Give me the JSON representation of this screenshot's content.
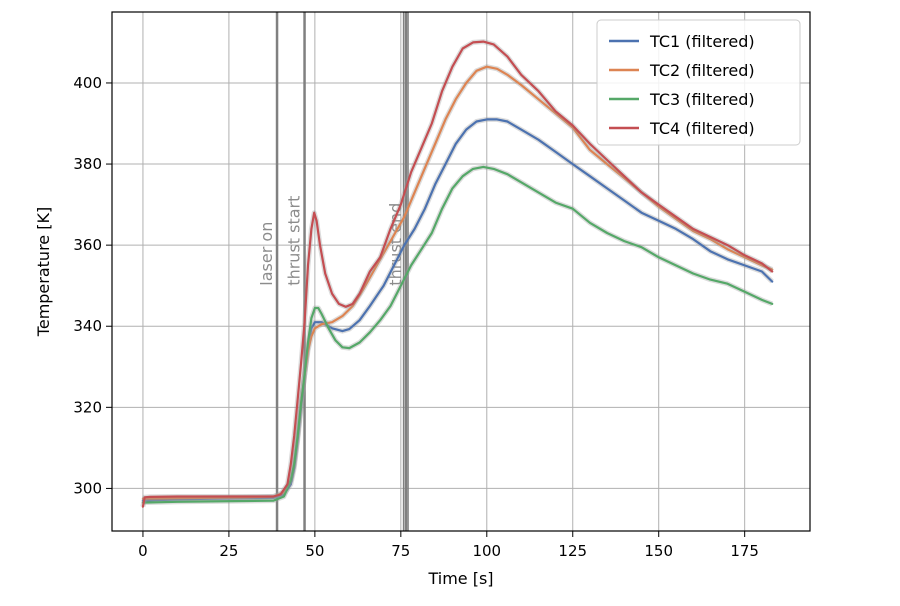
{
  "chart_data": {
    "type": "line",
    "title": "",
    "xlabel": "Time [s]",
    "ylabel": "Temperature [K]",
    "xlim": [
      -9,
      194
    ],
    "ylim": [
      289.5,
      417.5
    ],
    "xticks": [
      0,
      25,
      50,
      75,
      100,
      125,
      150,
      175
    ],
    "yticks": [
      300,
      320,
      340,
      360,
      380,
      400
    ],
    "grid": true,
    "legend_position": "top-right",
    "events": [
      {
        "label": "laser on",
        "x": 39
      },
      {
        "label": "thrust start",
        "x": 47
      },
      {
        "label": "thrust end",
        "x": 76.5
      }
    ],
    "extra_event_lines": [
      75.8,
      77.1
    ],
    "series": [
      {
        "name": "TC1 (filtered)",
        "color": "#4c72b0",
        "points": [
          [
            0,
            297.0
          ],
          [
            10,
            297.3
          ],
          [
            20,
            297.5
          ],
          [
            30,
            297.6
          ],
          [
            38,
            297.7
          ],
          [
            41,
            298.5
          ],
          [
            43,
            301
          ],
          [
            44,
            305
          ],
          [
            45,
            312
          ],
          [
            46,
            320
          ],
          [
            47,
            328
          ],
          [
            48,
            335
          ],
          [
            49,
            339.5
          ],
          [
            50,
            341
          ],
          [
            52,
            341
          ],
          [
            55,
            339.5
          ],
          [
            58,
            338.8
          ],
          [
            60,
            339.3
          ],
          [
            63,
            341.5
          ],
          [
            66,
            345
          ],
          [
            70,
            350
          ],
          [
            73,
            355
          ],
          [
            76,
            360
          ],
          [
            79,
            364
          ],
          [
            82,
            369
          ],
          [
            85,
            375
          ],
          [
            88,
            380
          ],
          [
            91,
            385
          ],
          [
            94,
            388.5
          ],
          [
            97,
            390.5
          ],
          [
            100,
            391
          ],
          [
            103,
            391
          ],
          [
            106,
            390.5
          ],
          [
            110,
            388.5
          ],
          [
            115,
            386
          ],
          [
            120,
            383
          ],
          [
            125,
            380
          ],
          [
            130,
            377
          ],
          [
            135,
            374
          ],
          [
            140,
            371
          ],
          [
            145,
            368
          ],
          [
            150,
            366
          ],
          [
            155,
            364
          ],
          [
            160,
            361.5
          ],
          [
            165,
            358.5
          ],
          [
            170,
            356.5
          ],
          [
            175,
            355
          ],
          [
            180,
            353.5
          ],
          [
            183,
            351
          ]
        ]
      },
      {
        "name": "TC2 (filtered)",
        "color": "#dd8452",
        "points": [
          [
            0,
            297.5
          ],
          [
            10,
            297.6
          ],
          [
            20,
            297.7
          ],
          [
            30,
            297.8
          ],
          [
            38,
            298.0
          ],
          [
            41,
            299
          ],
          [
            43,
            302
          ],
          [
            44,
            306
          ],
          [
            45,
            313
          ],
          [
            46,
            321
          ],
          [
            47,
            328
          ],
          [
            48,
            334
          ],
          [
            49,
            337.5
          ],
          [
            50,
            339.5
          ],
          [
            52,
            340.5
          ],
          [
            55,
            341
          ],
          [
            58,
            342.5
          ],
          [
            61,
            345
          ],
          [
            64,
            349
          ],
          [
            67,
            353.5
          ],
          [
            70,
            358
          ],
          [
            73,
            362.5
          ],
          [
            76,
            367
          ],
          [
            79,
            373
          ],
          [
            82,
            379
          ],
          [
            85,
            385
          ],
          [
            88,
            391
          ],
          [
            91,
            396
          ],
          [
            94,
            400
          ],
          [
            97,
            403
          ],
          [
            100,
            404
          ],
          [
            103,
            403.5
          ],
          [
            106,
            402
          ],
          [
            110,
            399.5
          ],
          [
            115,
            396
          ],
          [
            120,
            392.5
          ],
          [
            125,
            389
          ],
          [
            130,
            383.5
          ],
          [
            135,
            380
          ],
          [
            140,
            376.5
          ],
          [
            145,
            373
          ],
          [
            150,
            369.5
          ],
          [
            155,
            366.5
          ],
          [
            160,
            363.5
          ],
          [
            165,
            361.5
          ],
          [
            170,
            359
          ],
          [
            175,
            357
          ],
          [
            180,
            355
          ],
          [
            183,
            354
          ]
        ]
      },
      {
        "name": "TC3 (filtered)",
        "color": "#55a868",
        "points": [
          [
            0,
            296.5
          ],
          [
            10,
            296.7
          ],
          [
            20,
            296.8
          ],
          [
            30,
            296.9
          ],
          [
            38,
            297.0
          ],
          [
            41,
            298
          ],
          [
            43,
            302
          ],
          [
            44,
            306
          ],
          [
            45,
            313
          ],
          [
            46,
            321
          ],
          [
            47,
            328
          ],
          [
            48,
            336
          ],
          [
            49,
            342
          ],
          [
            50,
            344.5
          ],
          [
            51,
            344.5
          ],
          [
            52,
            343
          ],
          [
            54,
            339.5
          ],
          [
            56,
            336.5
          ],
          [
            58,
            334.8
          ],
          [
            60,
            334.6
          ],
          [
            63,
            336
          ],
          [
            66,
            338.5
          ],
          [
            69,
            341.5
          ],
          [
            72,
            345
          ],
          [
            75,
            350
          ],
          [
            78,
            355
          ],
          [
            81,
            359
          ],
          [
            84,
            363
          ],
          [
            87,
            369
          ],
          [
            90,
            374
          ],
          [
            93,
            377
          ],
          [
            96,
            378.8
          ],
          [
            99,
            379.3
          ],
          [
            102,
            378.8
          ],
          [
            106,
            377.5
          ],
          [
            110,
            375.5
          ],
          [
            115,
            373
          ],
          [
            120,
            370.5
          ],
          [
            125,
            369
          ],
          [
            130,
            365.5
          ],
          [
            135,
            363
          ],
          [
            140,
            361
          ],
          [
            145,
            359.5
          ],
          [
            150,
            357
          ],
          [
            155,
            355
          ],
          [
            160,
            353
          ],
          [
            165,
            351.5
          ],
          [
            170,
            350.5
          ],
          [
            175,
            348.5
          ],
          [
            180,
            346.5
          ],
          [
            183,
            345.5
          ]
        ]
      },
      {
        "name": "TC4 (filtered)",
        "color": "#c44e52",
        "points": [
          [
            0,
            295.5
          ],
          [
            0.5,
            297.8
          ],
          [
            2,
            297.9
          ],
          [
            10,
            298.0
          ],
          [
            20,
            298.0
          ],
          [
            30,
            298.0
          ],
          [
            38,
            298.0
          ],
          [
            40,
            298.5
          ],
          [
            42,
            301
          ],
          [
            43,
            306
          ],
          [
            44,
            313
          ],
          [
            45,
            322
          ],
          [
            46,
            331
          ],
          [
            47,
            341
          ],
          [
            48,
            355
          ],
          [
            49,
            364
          ],
          [
            49.8,
            368
          ],
          [
            50.5,
            366
          ],
          [
            51.5,
            360
          ],
          [
            53,
            353
          ],
          [
            55,
            348
          ],
          [
            57,
            345.5
          ],
          [
            59,
            344.8
          ],
          [
            61,
            345.5
          ],
          [
            63,
            348
          ],
          [
            66,
            353.5
          ],
          [
            69,
            357
          ],
          [
            72,
            364
          ],
          [
            75,
            370
          ],
          [
            78,
            378
          ],
          [
            81,
            384
          ],
          [
            84,
            390
          ],
          [
            87,
            398
          ],
          [
            90,
            404
          ],
          [
            93,
            408.5
          ],
          [
            96,
            410
          ],
          [
            99,
            410.2
          ],
          [
            102,
            409.5
          ],
          [
            106,
            406.5
          ],
          [
            110,
            402
          ],
          [
            115,
            398
          ],
          [
            120,
            393
          ],
          [
            125,
            389.5
          ],
          [
            130,
            385
          ],
          [
            135,
            381
          ],
          [
            140,
            377
          ],
          [
            145,
            373
          ],
          [
            150,
            370
          ],
          [
            155,
            367
          ],
          [
            160,
            364
          ],
          [
            165,
            362
          ],
          [
            170,
            360
          ],
          [
            175,
            357.5
          ],
          [
            180,
            355.5
          ],
          [
            183,
            353.5
          ]
        ]
      }
    ]
  }
}
